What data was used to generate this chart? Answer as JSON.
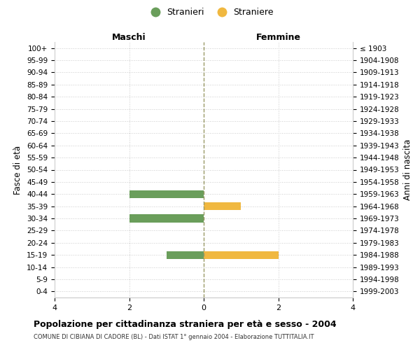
{
  "age_groups": [
    "100+",
    "95-99",
    "90-94",
    "85-89",
    "80-84",
    "75-79",
    "70-74",
    "65-69",
    "60-64",
    "55-59",
    "50-54",
    "45-49",
    "40-44",
    "35-39",
    "30-34",
    "25-29",
    "20-24",
    "15-19",
    "10-14",
    "5-9",
    "0-4"
  ],
  "birth_years": [
    "≤ 1903",
    "1904-1908",
    "1909-1913",
    "1914-1918",
    "1919-1923",
    "1924-1928",
    "1929-1933",
    "1934-1938",
    "1939-1943",
    "1944-1948",
    "1949-1953",
    "1954-1958",
    "1959-1963",
    "1964-1968",
    "1969-1973",
    "1974-1978",
    "1979-1983",
    "1984-1988",
    "1989-1993",
    "1994-1998",
    "1999-2003"
  ],
  "maschi_values": [
    0,
    0,
    0,
    0,
    0,
    0,
    0,
    0,
    0,
    0,
    0,
    0,
    -2,
    0,
    -2,
    0,
    0,
    -1,
    0,
    0,
    0
  ],
  "femmine_values": [
    0,
    0,
    0,
    0,
    0,
    0,
    0,
    0,
    0,
    0,
    0,
    0,
    0,
    1,
    0,
    0,
    0,
    2,
    0,
    0,
    0
  ],
  "maschi_color": "#6a9e5b",
  "femmine_color": "#f0b840",
  "xlim": [
    -4,
    4
  ],
  "xticks": [
    -4,
    -2,
    0,
    2,
    4
  ],
  "xticklabels": [
    "4",
    "2",
    "0",
    "2",
    "4"
  ],
  "title": "Popolazione per cittadinanza straniera per età e sesso - 2004",
  "subtitle": "COMUNE DI CIBIANA DI CADORE (BL) - Dati ISTAT 1° gennaio 2004 - Elaborazione TUTTITALIA.IT",
  "ylabel_left": "Fasce di età",
  "ylabel_right": "Anni di nascita",
  "label_maschi": "Maschi",
  "label_femmine": "Femmine",
  "legend_stranieri": "Stranieri",
  "legend_straniere": "Straniere",
  "background_color": "#ffffff",
  "grid_color": "#cccccc",
  "bar_height": 0.65
}
